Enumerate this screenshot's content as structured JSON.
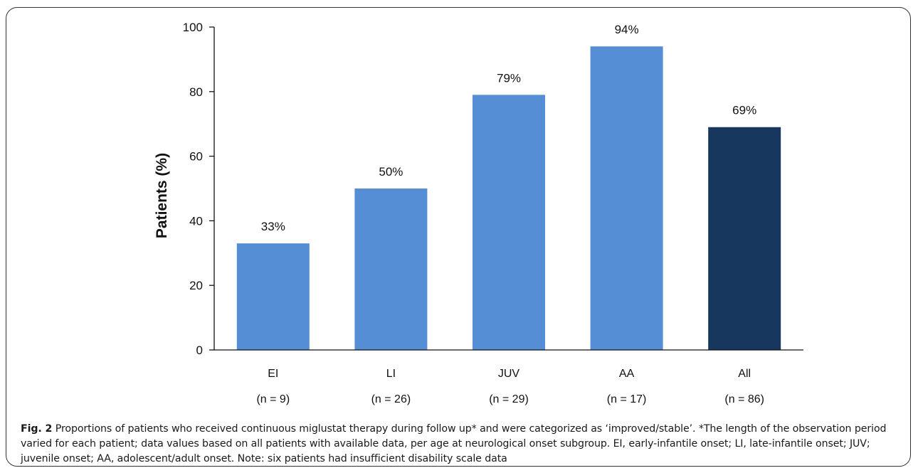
{
  "chart_data": {
    "type": "bar",
    "categories": [
      "EI",
      "LI",
      "JUV",
      "AA",
      "All"
    ],
    "category_counts": [
      "(n = 9)",
      "(n = 26)",
      "(n = 29)",
      "(n = 17)",
      "(n = 86)"
    ],
    "values": [
      33,
      50,
      79,
      94,
      69
    ],
    "data_labels": [
      "33%",
      "50%",
      "79%",
      "94%",
      "69%"
    ],
    "bar_colors": [
      "#558ed5",
      "#558ed5",
      "#558ed5",
      "#558ed5",
      "#17375e"
    ],
    "xlabel": "",
    "ylabel": "Patients (%)",
    "ylim": [
      0,
      100
    ],
    "yticks": [
      0,
      20,
      40,
      60,
      80,
      100
    ],
    "grid": false,
    "legend": "none"
  },
  "caption": {
    "label": "Fig. 2",
    "text": "Proportions of patients who received continuous miglustat therapy during follow up* and were categorized as ‘improved/stable’. *The length of the observation period varied for each patient; data values based on all patients with available data, per age at neurological onset subgroup. EI, early-infantile onset; LI, late-infantile onset; JUV; juvenile onset; AA, adolescent/adult onset. Note: six patients had insufficient disability scale data"
  }
}
